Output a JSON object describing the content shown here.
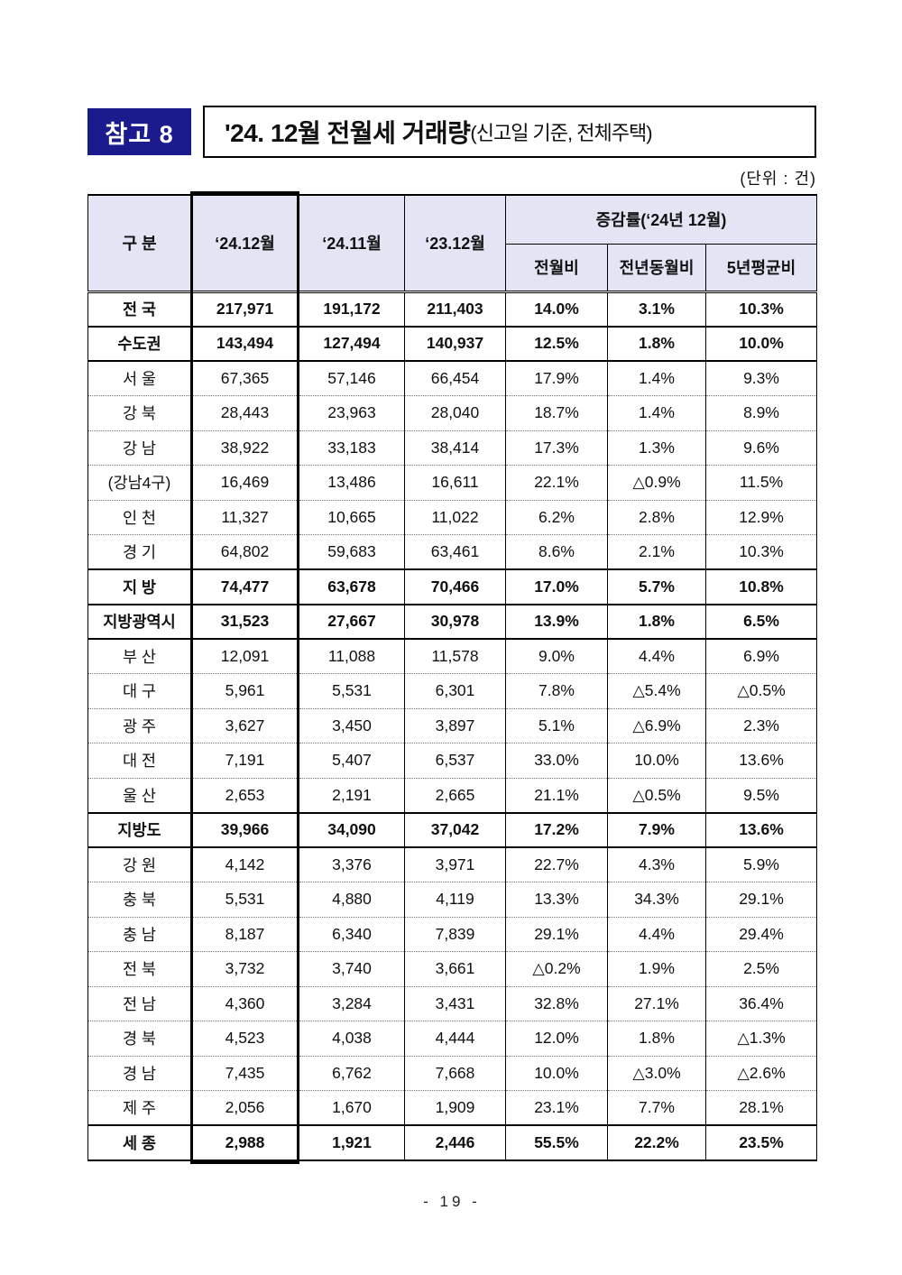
{
  "header": {
    "badge": "참고 8",
    "title_main": "'24. 12월 전월세 거래량",
    "title_sub": "(신고일 기준, 전체주택)",
    "unit_note": "(단위 : 건)"
  },
  "table": {
    "group_header": "증감률(‘24년 12월)",
    "columns": [
      "구 분",
      "‘24.12월",
      "‘24.11월",
      "‘23.12월",
      "전월비",
      "전년동월비",
      "5년평균비"
    ],
    "rows": [
      {
        "label": "전 국",
        "bold": true,
        "sep": "solid",
        "values": [
          "217,971",
          "191,172",
          "211,403",
          "14.0%",
          "3.1%",
          "10.3%"
        ]
      },
      {
        "label": "수도권",
        "bold": true,
        "sep": "solid",
        "values": [
          "143,494",
          "127,494",
          "140,937",
          "12.5%",
          "1.8%",
          "10.0%"
        ]
      },
      {
        "label": "서 울",
        "bold": false,
        "sep": "dotted",
        "values": [
          "67,365",
          "57,146",
          "66,454",
          "17.9%",
          "1.4%",
          "9.3%"
        ]
      },
      {
        "label": "강 북",
        "bold": false,
        "sep": "dotted",
        "values": [
          "28,443",
          "23,963",
          "28,040",
          "18.7%",
          "1.4%",
          "8.9%"
        ]
      },
      {
        "label": "강 남",
        "bold": false,
        "sep": "dotted",
        "values": [
          "38,922",
          "33,183",
          "38,414",
          "17.3%",
          "1.3%",
          "9.6%"
        ]
      },
      {
        "label": "(강남4구)",
        "bold": false,
        "sep": "dotted",
        "values": [
          "16,469",
          "13,486",
          "16,611",
          "22.1%",
          "△0.9%",
          "11.5%"
        ]
      },
      {
        "label": "인 천",
        "bold": false,
        "sep": "dotted",
        "values": [
          "11,327",
          "10,665",
          "11,022",
          "6.2%",
          "2.8%",
          "12.9%"
        ]
      },
      {
        "label": "경 기",
        "bold": false,
        "sep": "solid",
        "values": [
          "64,802",
          "59,683",
          "63,461",
          "8.6%",
          "2.1%",
          "10.3%"
        ]
      },
      {
        "label": "지 방",
        "bold": true,
        "sep": "solid",
        "values": [
          "74,477",
          "63,678",
          "70,466",
          "17.0%",
          "5.7%",
          "10.8%"
        ]
      },
      {
        "label": "지방광역시",
        "bold": true,
        "sep": "solid",
        "values": [
          "31,523",
          "27,667",
          "30,978",
          "13.9%",
          "1.8%",
          "6.5%"
        ]
      },
      {
        "label": "부 산",
        "bold": false,
        "sep": "dotted",
        "values": [
          "12,091",
          "11,088",
          "11,578",
          "9.0%",
          "4.4%",
          "6.9%"
        ]
      },
      {
        "label": "대 구",
        "bold": false,
        "sep": "dotted",
        "values": [
          "5,961",
          "5,531",
          "6,301",
          "7.8%",
          "△5.4%",
          "△0.5%"
        ]
      },
      {
        "label": "광 주",
        "bold": false,
        "sep": "dotted",
        "values": [
          "3,627",
          "3,450",
          "3,897",
          "5.1%",
          "△6.9%",
          "2.3%"
        ]
      },
      {
        "label": "대 전",
        "bold": false,
        "sep": "dotted",
        "values": [
          "7,191",
          "5,407",
          "6,537",
          "33.0%",
          "10.0%",
          "13.6%"
        ]
      },
      {
        "label": "울 산",
        "bold": false,
        "sep": "solid",
        "values": [
          "2,653",
          "2,191",
          "2,665",
          "21.1%",
          "△0.5%",
          "9.5%"
        ]
      },
      {
        "label": "지방도",
        "bold": true,
        "sep": "solid",
        "values": [
          "39,966",
          "34,090",
          "37,042",
          "17.2%",
          "7.9%",
          "13.6%"
        ]
      },
      {
        "label": "강 원",
        "bold": false,
        "sep": "dotted",
        "values": [
          "4,142",
          "3,376",
          "3,971",
          "22.7%",
          "4.3%",
          "5.9%"
        ]
      },
      {
        "label": "충 북",
        "bold": false,
        "sep": "dotted",
        "values": [
          "5,531",
          "4,880",
          "4,119",
          "13.3%",
          "34.3%",
          "29.1%"
        ]
      },
      {
        "label": "충 남",
        "bold": false,
        "sep": "dotted",
        "values": [
          "8,187",
          "6,340",
          "7,839",
          "29.1%",
          "4.4%",
          "29.4%"
        ]
      },
      {
        "label": "전 북",
        "bold": false,
        "sep": "dotted",
        "values": [
          "3,732",
          "3,740",
          "3,661",
          "△0.2%",
          "1.9%",
          "2.5%"
        ]
      },
      {
        "label": "전 남",
        "bold": false,
        "sep": "dotted",
        "values": [
          "4,360",
          "3,284",
          "3,431",
          "32.8%",
          "27.1%",
          "36.4%"
        ]
      },
      {
        "label": "경 북",
        "bold": false,
        "sep": "dotted",
        "values": [
          "4,523",
          "4,038",
          "4,444",
          "12.0%",
          "1.8%",
          "△1.3%"
        ]
      },
      {
        "label": "경 남",
        "bold": false,
        "sep": "dotted",
        "values": [
          "7,435",
          "6,762",
          "7,668",
          "10.0%",
          "△3.0%",
          "△2.6%"
        ]
      },
      {
        "label": "제 주",
        "bold": false,
        "sep": "solid",
        "values": [
          "2,056",
          "1,670",
          "1,909",
          "23.1%",
          "7.7%",
          "28.1%"
        ]
      },
      {
        "label": "세 종",
        "bold": true,
        "sep": "none",
        "values": [
          "2,988",
          "1,921",
          "2,446",
          "55.5%",
          "22.2%",
          "23.5%"
        ]
      }
    ]
  },
  "footer": {
    "page_number": "- 19 -"
  },
  "colors": {
    "badge_bg": "#1b1b8e",
    "header_bg": "#e3e5f4",
    "border": "#000000"
  }
}
